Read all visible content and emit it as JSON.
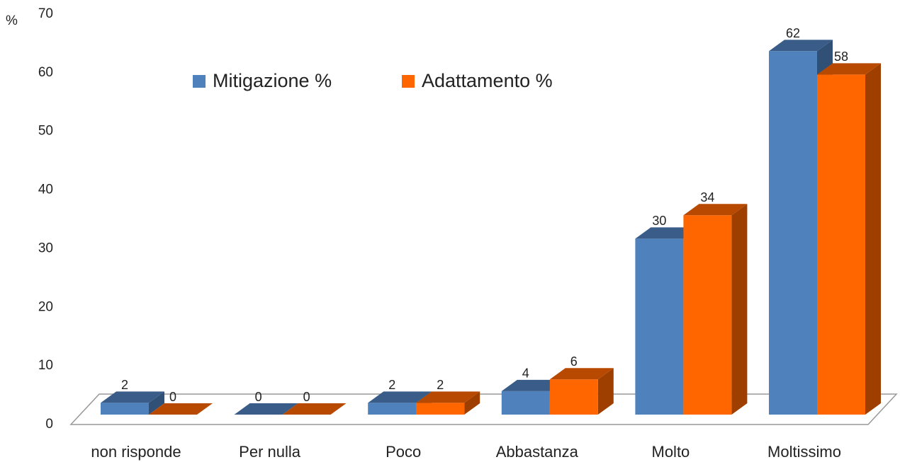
{
  "chart_data": {
    "type": "bar3d",
    "y_label": "%",
    "categories": [
      "non risponde",
      "Per nulla",
      "Poco",
      "Abbastanza",
      "Molto",
      "Moltissimo"
    ],
    "series": [
      {
        "name": "Mitigazione %",
        "color": "#4f81bd",
        "values": [
          2,
          0,
          2,
          4,
          30,
          62
        ]
      },
      {
        "name": "Adattamento %",
        "color": "#ff6600",
        "values": [
          0,
          0,
          2,
          6,
          34,
          58
        ]
      }
    ],
    "ylim": [
      0,
      70
    ],
    "yticks": [
      0,
      10,
      20,
      30,
      40,
      50,
      60,
      70
    ],
    "grid": false,
    "legend": "top"
  }
}
